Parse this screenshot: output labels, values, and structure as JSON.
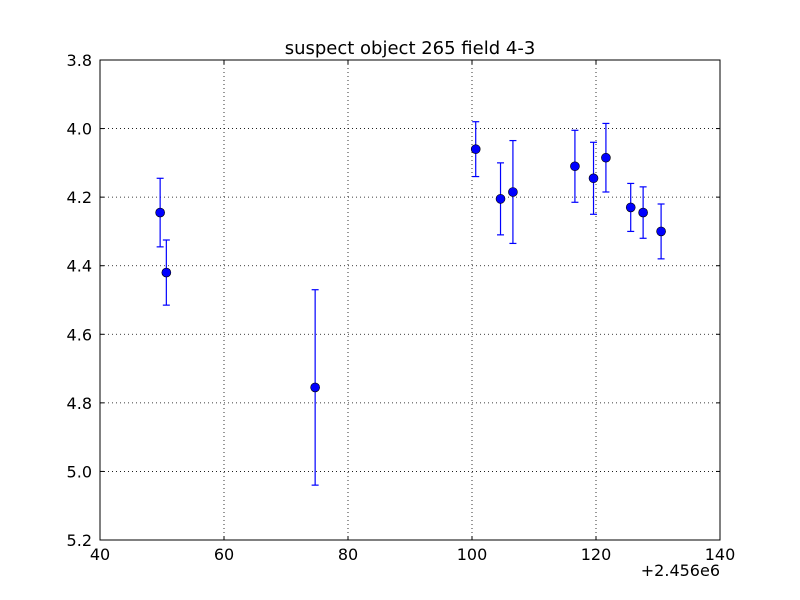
{
  "chart_data": {
    "type": "scatter",
    "title": "suspect object 265 field 4-3",
    "xlabel": "",
    "ylabel": "",
    "x_offset_label": "+2.456e6",
    "xlim": [
      40,
      140
    ],
    "ylim": [
      5.2,
      3.8
    ],
    "y_inverted": true,
    "grid": true,
    "x_ticks": [
      "40",
      "60",
      "80",
      "100",
      "120",
      "140"
    ],
    "y_ticks": [
      "3.8",
      "4.0",
      "4.2",
      "4.4",
      "4.6",
      "4.8",
      "5.0",
      "5.2"
    ],
    "marker_color": "#0000ff",
    "series": [
      {
        "points": [
          {
            "x": 49.7,
            "y": 4.245,
            "err": 0.1
          },
          {
            "x": 50.7,
            "y": 4.42,
            "err": 0.095
          },
          {
            "x": 74.7,
            "y": 4.755,
            "err": 0.285
          },
          {
            "x": 100.6,
            "y": 4.06,
            "err": 0.08
          },
          {
            "x": 104.6,
            "y": 4.205,
            "err": 0.105
          },
          {
            "x": 106.6,
            "y": 4.185,
            "err": 0.15
          },
          {
            "x": 116.6,
            "y": 4.11,
            "err": 0.105
          },
          {
            "x": 119.6,
            "y": 4.145,
            "err": 0.105
          },
          {
            "x": 121.6,
            "y": 4.085,
            "err": 0.1
          },
          {
            "x": 125.6,
            "y": 4.23,
            "err": 0.07
          },
          {
            "x": 127.6,
            "y": 4.245,
            "err": 0.075
          },
          {
            "x": 130.5,
            "y": 4.3,
            "err": 0.08
          }
        ]
      }
    ]
  }
}
